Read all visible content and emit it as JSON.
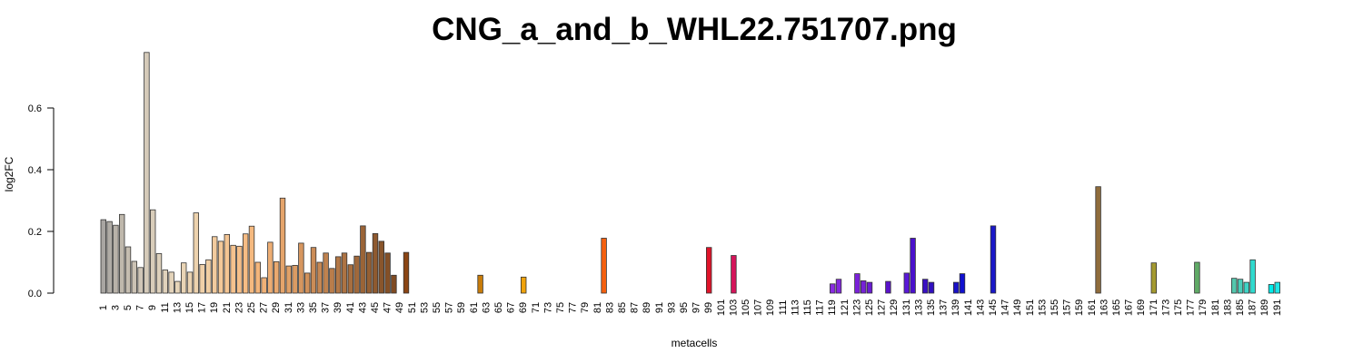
{
  "chart_data": {
    "type": "bar",
    "title": "CNG_a_and_b_WHL22.751707.png",
    "xlabel": "metacells",
    "ylabel": "log2FC",
    "ylim": [
      0,
      0.78
    ],
    "yticks": [
      "0.0",
      "0.2",
      "0.4",
      "0.6"
    ],
    "grid": false,
    "legend": "none",
    "categories": [
      "1",
      "2",
      "3",
      "4",
      "5",
      "6",
      "7",
      "8",
      "9",
      "10",
      "11",
      "12",
      "13",
      "14",
      "15",
      "16",
      "17",
      "18",
      "19",
      "20",
      "21",
      "22",
      "23",
      "24",
      "25",
      "26",
      "27",
      "28",
      "29",
      "30",
      "31",
      "32",
      "33",
      "34",
      "35",
      "36",
      "37",
      "38",
      "39",
      "40",
      "41",
      "42",
      "43",
      "44",
      "45",
      "46",
      "47",
      "48",
      "49",
      "50",
      "51",
      "52",
      "53",
      "54",
      "55",
      "56",
      "57",
      "58",
      "59",
      "60",
      "61",
      "62",
      "63",
      "64",
      "65",
      "66",
      "67",
      "68",
      "69",
      "70",
      "71",
      "72",
      "73",
      "74",
      "75",
      "76",
      "77",
      "78",
      "79",
      "80",
      "81",
      "82",
      "83",
      "84",
      "85",
      "86",
      "87",
      "88",
      "89",
      "90",
      "91",
      "92",
      "93",
      "94",
      "95",
      "96",
      "97",
      "98",
      "99",
      "100",
      "101",
      "102",
      "103",
      "104",
      "105",
      "106",
      "107",
      "108",
      "109",
      "110",
      "111",
      "112",
      "113",
      "114",
      "115",
      "116",
      "117",
      "118",
      "119",
      "120",
      "121",
      "122",
      "123",
      "124",
      "125",
      "126",
      "127",
      "128",
      "129",
      "130",
      "131",
      "132",
      "133",
      "134",
      "135",
      "136",
      "137",
      "138",
      "139",
      "140",
      "141",
      "142",
      "143",
      "144",
      "145",
      "146",
      "147",
      "148",
      "149",
      "150",
      "151",
      "152",
      "153",
      "154",
      "155",
      "156",
      "157",
      "158",
      "159",
      "160",
      "161",
      "162",
      "163",
      "164",
      "165",
      "166",
      "167",
      "168",
      "169",
      "170",
      "171",
      "172",
      "173",
      "174",
      "175",
      "176",
      "177",
      "178",
      "179",
      "180",
      "181",
      "182",
      "183",
      "184",
      "185",
      "186",
      "187",
      "188",
      "189",
      "190",
      "191"
    ],
    "values": [
      0.238,
      0.232,
      0.22,
      0.255,
      0.15,
      0.103,
      0.083,
      0.78,
      0.27,
      0.128,
      0.075,
      0.068,
      0.038,
      0.098,
      0.068,
      0.26,
      0.093,
      0.108,
      0.183,
      0.168,
      0.19,
      0.155,
      0.152,
      0.192,
      0.217,
      0.1,
      0.05,
      0.165,
      0.102,
      0.308,
      0.088,
      0.09,
      0.162,
      0.065,
      0.148,
      0.1,
      0.13,
      0.08,
      0.118,
      0.13,
      0.092,
      0.12,
      0.218,
      0.132,
      0.193,
      0.168,
      0.13,
      0.058,
      0,
      0.132,
      0,
      0,
      0,
      0,
      0,
      0,
      0,
      0,
      0,
      0,
      0,
      0.058,
      0,
      0,
      0,
      0,
      0,
      0,
      0.052,
      0,
      0,
      0,
      0,
      0,
      0,
      0,
      0,
      0,
      0,
      0,
      0,
      0.178,
      0,
      0,
      0,
      0,
      0,
      0,
      0,
      0,
      0,
      0,
      0,
      0,
      0,
      0,
      0,
      0,
      0.148,
      0,
      0,
      0,
      0.122,
      0,
      0,
      0,
      0,
      0,
      0,
      0,
      0,
      0,
      0,
      0,
      0,
      0,
      0,
      0,
      0.03,
      0.045,
      0,
      0,
      0.063,
      0.04,
      0.035,
      0,
      0,
      0.038,
      0,
      0,
      0.065,
      0.178,
      0,
      0.045,
      0.035,
      0,
      0,
      0,
      0.035,
      0.063,
      0,
      0,
      0,
      0,
      0.218,
      0,
      0,
      0,
      0,
      0,
      0,
      0,
      0,
      0,
      0,
      0,
      0,
      0,
      0,
      0,
      0,
      0.345,
      0,
      0,
      0,
      0,
      0,
      0,
      0,
      0,
      0.098,
      0,
      0,
      0,
      0,
      0,
      0,
      0.1,
      0,
      0,
      0,
      0,
      0,
      0.048,
      0.045,
      0.035,
      0.108,
      0,
      0,
      0.028,
      0.035
    ],
    "colors": [
      "#a8a5a2",
      "#b0aca6",
      "#b8b2a9",
      "#bfb8ac",
      "#c5bdb0",
      "#cbc2b4",
      "#d0c6b7",
      "#d5cab9",
      "#d9cdba",
      "#ddd0bb",
      "#e0d2bb",
      "#e3d3ba",
      "#e6d4b8",
      "#e9d4b5",
      "#ebd3b1",
      "#edd2ad",
      "#efd0a8",
      "#f0cea3",
      "#f2cb9e",
      "#f3c898",
      "#f4c593",
      "#f5c28e",
      "#f6bf89",
      "#f6bc84",
      "#f5b97f",
      "#f3b57b",
      "#f0b177",
      "#edad73",
      "#e9a96f",
      "#e5a46b",
      "#e0a067",
      "#db9b63",
      "#d6965f",
      "#d1915b",
      "#cb8c57",
      "#c58753",
      "#bf824f",
      "#b97d4b",
      "#b37847",
      "#ad7343",
      "#a76e3f",
      "#a1693b",
      "#9b6437",
      "#955f33",
      "#8f5a2f",
      "#89552b",
      "#845027",
      "#7f4b23",
      "#7a4720",
      "#8b4513",
      "#8b4513",
      "#9a520f",
      "#a65d0d",
      "#b2680b",
      "#bd7309",
      "#c87e07",
      "#d28905",
      "#cd7f10",
      "#d88a0c",
      "#e29508",
      "#d4840a",
      "#c87c0a",
      "#e0940c",
      "#e49b0c",
      "#e8a10c",
      "#eba70c",
      "#eeac0c",
      "#f0b00c",
      "#f0a30c",
      "#f2960c",
      "#f4890c",
      "#f67c0c",
      "#f86f0c",
      "#fa620c",
      "#fb580c",
      "#fc4e0c",
      "#fc440c",
      "#fb3b0c",
      "#fa330c",
      "#f82b0c",
      "#f65a0c",
      "#f4600f",
      "#f0550f",
      "#ec4b10",
      "#e84110",
      "#e43811",
      "#e02f12",
      "#dc2713",
      "#d81f15",
      "#d41818",
      "#d0121b",
      "#cc0e1e",
      "#c80c21",
      "#c40b24",
      "#c00b27",
      "#bc0b2a",
      "#b80b2d",
      "#de0a26",
      "#e0142a",
      "#d81a3c",
      "#d0204a",
      "#c82656",
      "#d4145a",
      "#c0306a",
      "#b83a78",
      "#b04486",
      "#a84e94",
      "#a058a2",
      "#9862b0",
      "#906cbe",
      "#8876cc",
      "#8080d6",
      "#7a76d8",
      "#9b30d9",
      "#9f2ed6",
      "#a12cd3",
      "#9330d8",
      "#9436d8",
      "#8a2be2",
      "#8428de",
      "#7e25da",
      "#8a2be2",
      "#7a20d8",
      "#7622d6",
      "#6a1dd2",
      "#6419d0",
      "#5d15cc",
      "#5a12c9",
      "#5510c6",
      "#5010c6",
      "#5a18d8",
      "#4a10cc",
      "#4810c8",
      "#3a10c4",
      "#3010c0",
      "#2a10bd",
      "#2410ba",
      "#1e10b8",
      "#1a10c8",
      "#1010d0",
      "#0a0ad8",
      "#0808e0",
      "#0606e8",
      "#1010d8",
      "#1a18c8",
      "#2020b8",
      "#2a28a8",
      "#343098",
      "#3e3888",
      "#484078",
      "#524868",
      "#5c5058",
      "#665848",
      "#706038",
      "#7a6830",
      "#846f2c",
      "#8e762a",
      "#987d28",
      "#a28426",
      "#ac8b24",
      "#8b6a3a",
      "#8f6c3c",
      "#94703e",
      "#997440",
      "#9e7842",
      "#a37c44",
      "#a88046",
      "#ad8448",
      "#b2884a",
      "#b29a28",
      "#a49a30",
      "#969a38",
      "#889a40",
      "#7a9a48",
      "#6c9a50",
      "#5e9a58",
      "#5aaa5a",
      "#60aa66",
      "#66aa72",
      "#6cb07e",
      "#72b68a",
      "#68bc96",
      "#5ec2a2",
      "#54c8ae",
      "#4aceba",
      "#40d4c6",
      "#30dace",
      "#20e0d6",
      "#10e6de",
      "#00ecea",
      "#20e8e8",
      "#10f0f0"
    ]
  }
}
